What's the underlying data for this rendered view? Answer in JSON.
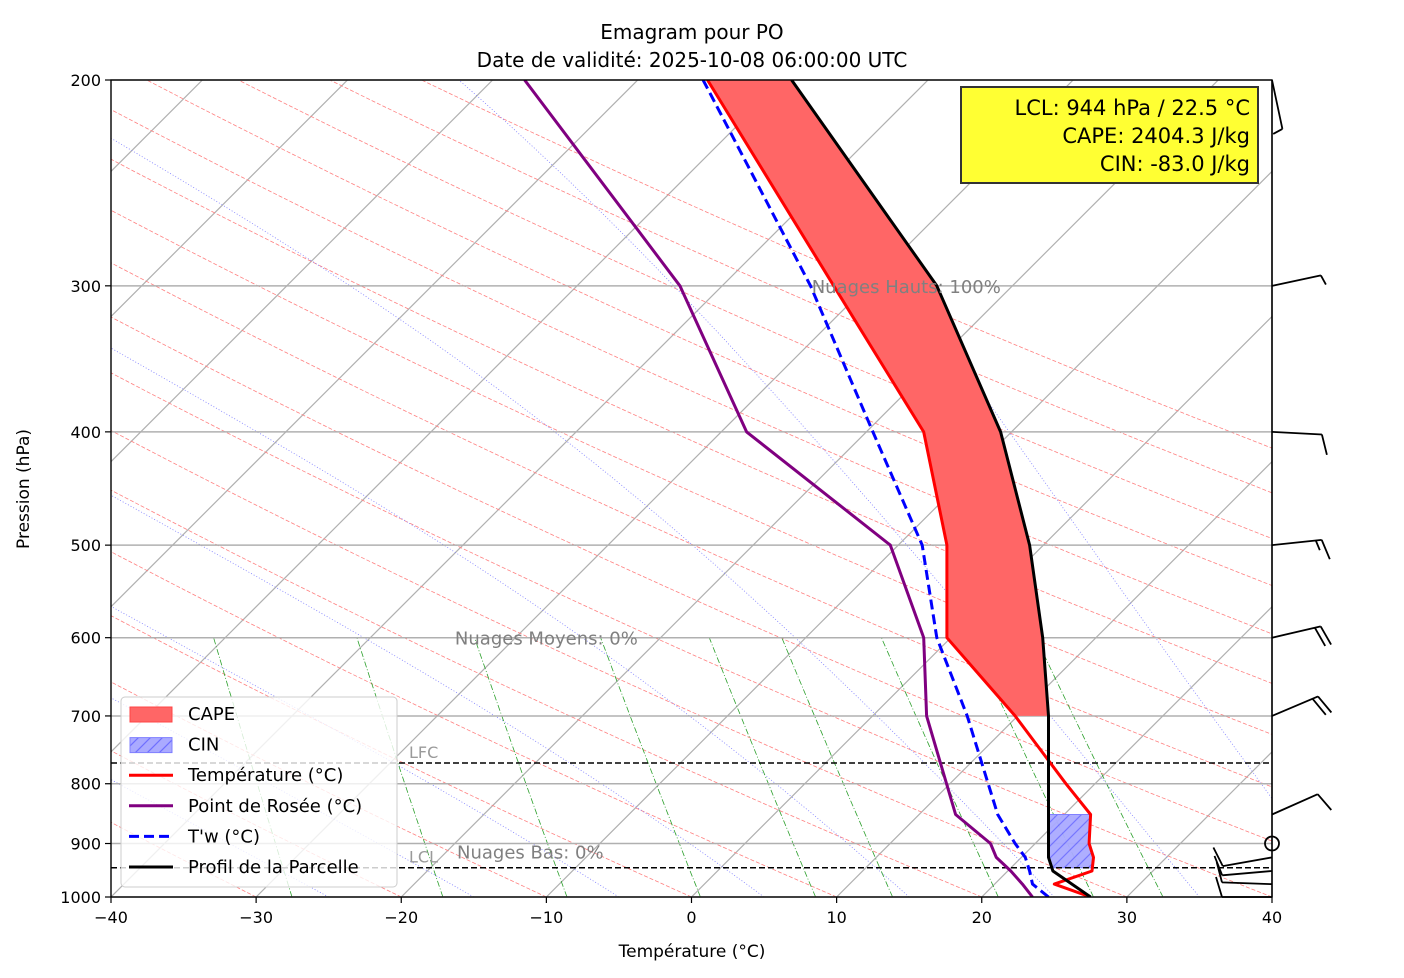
{
  "chart_data": {
    "type": "line",
    "subtype": "emagram",
    "title": "Emagram pour PO",
    "subtitle": "Date de validité: 2025-10-08 06:00:00 UTC",
    "xlabel": "Température (°C)",
    "ylabel": "Pression (hPa)",
    "xlim": [
      -40,
      40
    ],
    "ylim": [
      1000,
      200
    ],
    "y_scale": "log",
    "x_ticks": [
      -40,
      -30,
      -20,
      -10,
      0,
      10,
      20,
      30,
      40
    ],
    "x_tick_labels": [
      "−40",
      "−30",
      "−20",
      "−10",
      "0",
      "10",
      "20",
      "30",
      "40"
    ],
    "y_ticks": [
      200,
      300,
      400,
      500,
      600,
      700,
      800,
      900,
      1000
    ],
    "y_tick_labels": [
      "200",
      "300",
      "400",
      "500",
      "600",
      "700",
      "800",
      "900",
      "1000"
    ],
    "grid": true,
    "legend_position": "lower-left",
    "series": [
      {
        "name": "Température (°C)",
        "color": "#ff0000",
        "style": "solid",
        "points": [
          [
            1000,
            27.5
          ],
          [
            975,
            25.0
          ],
          [
            950,
            27.6
          ],
          [
            925,
            27.7
          ],
          [
            900,
            27.4
          ],
          [
            850,
            27.5
          ],
          [
            800,
            25.8
          ],
          [
            700,
            22.3
          ],
          [
            600,
            17.6
          ],
          [
            500,
            17.6
          ],
          [
            400,
            16.0
          ],
          [
            300,
            9.8
          ],
          [
            200,
            1.1
          ]
        ]
      },
      {
        "name": "Point de Rosée (°C)",
        "color": "#800080",
        "style": "solid",
        "points": [
          [
            1000,
            23.5
          ],
          [
            975,
            22.8
          ],
          [
            950,
            22.0
          ],
          [
            925,
            21.0
          ],
          [
            900,
            20.6
          ],
          [
            850,
            18.2
          ],
          [
            700,
            16.2
          ],
          [
            600,
            16.0
          ],
          [
            500,
            13.7
          ],
          [
            400,
            3.8
          ],
          [
            300,
            -0.8
          ],
          [
            200,
            -11.5
          ]
        ]
      },
      {
        "name": "T'w (°C)",
        "color": "#0000ff",
        "style": "dashed",
        "points": [
          [
            1000,
            24.6
          ],
          [
            975,
            23.5
          ],
          [
            950,
            23.3
          ],
          [
            925,
            23.0
          ],
          [
            900,
            22.3
          ],
          [
            850,
            21.1
          ],
          [
            700,
            19.0
          ],
          [
            600,
            16.9
          ],
          [
            500,
            15.9
          ],
          [
            400,
            12.5
          ],
          [
            300,
            8.2
          ],
          [
            200,
            0.8
          ]
        ]
      },
      {
        "name": "Profil de la Parcelle",
        "color": "#000000",
        "style": "solid",
        "points": [
          [
            1000,
            27.5
          ],
          [
            950,
            24.9
          ],
          [
            925,
            24.6
          ],
          [
            850,
            24.6
          ],
          [
            700,
            24.6
          ],
          [
            600,
            24.2
          ],
          [
            500,
            23.3
          ],
          [
            400,
            21.3
          ],
          [
            300,
            16.9
          ],
          [
            200,
            6.9
          ]
        ]
      }
    ],
    "areas": [
      {
        "name": "CAPE",
        "color": "#ff6666",
        "between": [
          "Température (°C)",
          "Profil de la Parcelle"
        ],
        "p_range": [
          700,
          200
        ]
      },
      {
        "name": "CIN",
        "color": "#aaaaff",
        "hatch": true,
        "between": [
          "Profil de la Parcelle",
          "Température (°C)"
        ],
        "p_range": [
          944,
          850
        ]
      }
    ],
    "levels": [
      {
        "name": "LFC",
        "pressure": 768
      },
      {
        "name": "LCL",
        "pressure": 944
      }
    ],
    "cloud_labels": [
      {
        "text": "Nuages Hauts: 100%",
        "pressure": 300,
        "temperature": 14.8
      },
      {
        "text": "Nuages Moyens: 0%",
        "pressure": 600,
        "temperature": -10.0
      },
      {
        "text": "Nuages Bas: 0%",
        "pressure": 940,
        "temperature": -27.5
      }
    ],
    "info_box": {
      "lines": [
        "LCL: 944 hPa / 22.5 °C",
        "CAPE: 2404.3 J/kg",
        "CIN: -83.0 J/kg"
      ],
      "background": "#ffff33"
    },
    "legend": [
      {
        "label": "CAPE",
        "kind": "patch",
        "color": "#ff6666"
      },
      {
        "label": "CIN",
        "kind": "hatch",
        "color": "#aaaaff"
      },
      {
        "label": "Température (°C)",
        "kind": "line",
        "color": "#ff0000"
      },
      {
        "label": "Point de Rosée (°C)",
        "kind": "line",
        "color": "#800080"
      },
      {
        "label": "T'w (°C)",
        "kind": "dash",
        "color": "#0000ff"
      },
      {
        "label": "Profil de la Parcelle",
        "kind": "line",
        "color": "#000000"
      }
    ],
    "wind_barbs": [
      {
        "pressure": 200,
        "direction": 168,
        "speed_kt": 5
      },
      {
        "pressure": 300,
        "direction": 78,
        "speed_kt": 5
      },
      {
        "pressure": 400,
        "direction": 93,
        "speed_kt": 10
      },
      {
        "pressure": 500,
        "direction": 84,
        "speed_kt": 15
      },
      {
        "pressure": 600,
        "direction": 77,
        "speed_kt": 20
      },
      {
        "pressure": 700,
        "direction": 67,
        "speed_kt": 20
      },
      {
        "pressure": 850,
        "direction": 66,
        "speed_kt": 10
      },
      {
        "pressure": 900,
        "direction": 0,
        "speed_kt": 0
      },
      {
        "pressure": 925,
        "direction": 260,
        "speed_kt": 10
      },
      {
        "pressure": 950,
        "direction": 265,
        "speed_kt": 10
      },
      {
        "pressure": 975,
        "direction": 272,
        "speed_kt": 10
      },
      {
        "pressure": 1000,
        "direction": 270,
        "speed_kt": 10
      }
    ],
    "background_lines": {
      "isotherm_color": "#b0b0b0",
      "dry_adiabat_color": "#ff8080",
      "moist_adiabat_color": "#8080ff",
      "mixing_ratio_color": "#2ca02c",
      "mixing_ratios_kg_per_kg": [
        0.0004,
        0.001,
        0.002,
        0.004,
        0.007,
        0.01,
        0.016,
        0.024,
        0.032
      ],
      "mixing_ratio_top_hpa": 600
    }
  }
}
